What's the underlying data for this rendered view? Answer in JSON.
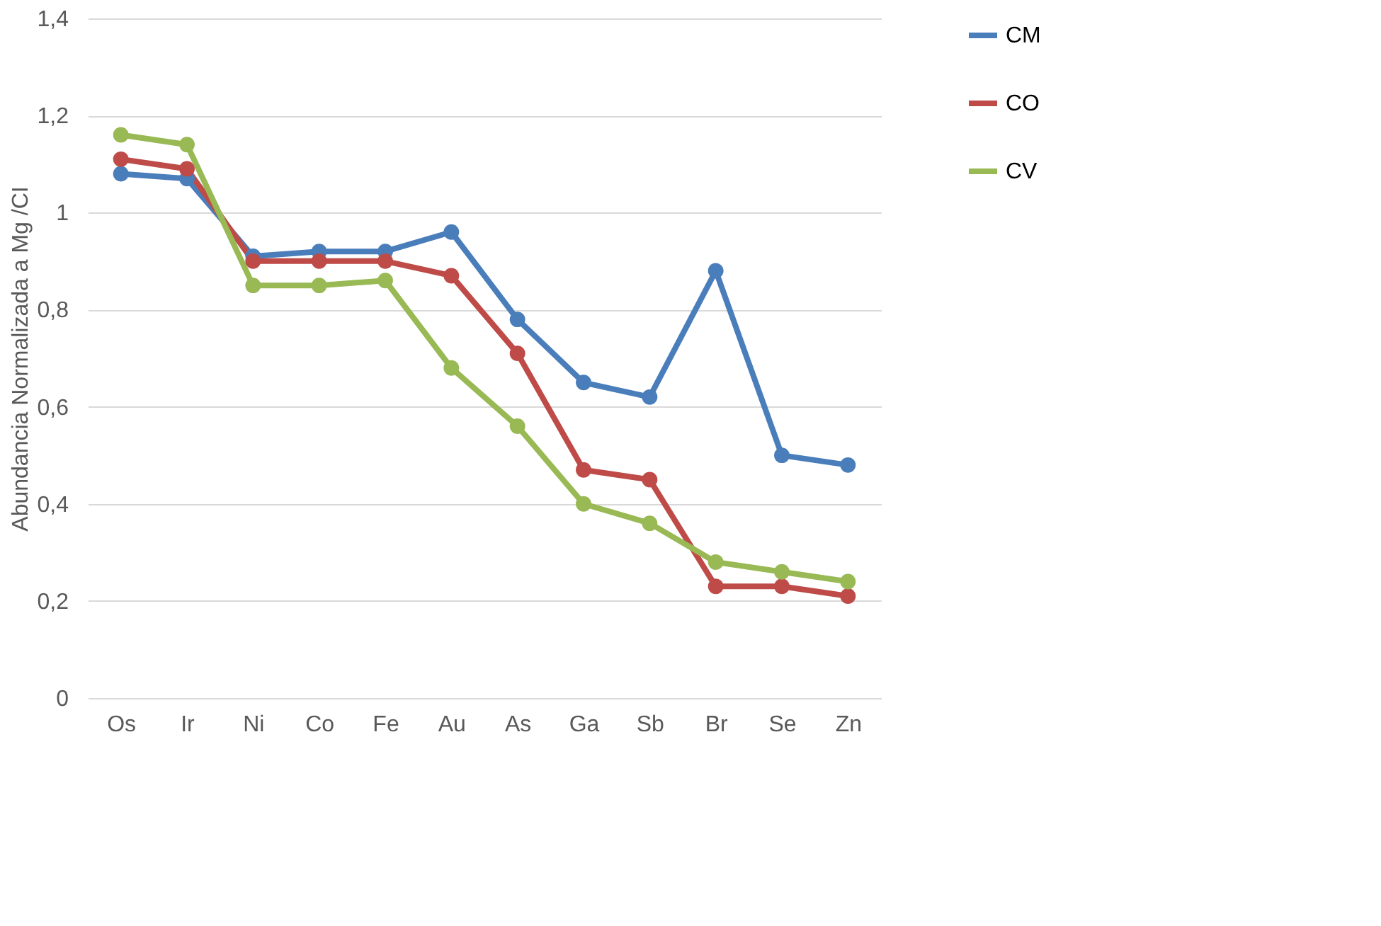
{
  "chart_data": {
    "type": "line",
    "ylabel": "Abundancia Normalizada a  Mg /CI",
    "categories": [
      "Os",
      "Ir",
      "Ni",
      "Co",
      "Fe",
      "Au",
      "As",
      "Ga",
      "Sb",
      "Br",
      "Se",
      "Zn"
    ],
    "series": [
      {
        "name": "CM",
        "color": "#4a7ebb",
        "values": [
          1.08,
          1.07,
          0.91,
          0.92,
          0.92,
          0.96,
          0.78,
          0.65,
          0.62,
          0.88,
          0.5,
          0.48
        ]
      },
      {
        "name": "CO",
        "color": "#be4b48",
        "values": [
          1.11,
          1.09,
          0.9,
          0.9,
          0.9,
          0.87,
          0.71,
          0.47,
          0.45,
          0.23,
          0.23,
          0.21
        ]
      },
      {
        "name": "CV",
        "color": "#98b954",
        "values": [
          1.16,
          1.14,
          0.85,
          0.85,
          0.86,
          0.68,
          0.56,
          0.4,
          0.36,
          0.28,
          0.26,
          0.24
        ]
      }
    ],
    "ylim": [
      0,
      1.4
    ],
    "yticks": [
      0,
      {
        "value": 0.2,
        "label": "0,2"
      },
      {
        "value": 0.4,
        "label": "0,4"
      },
      {
        "value": 0.6,
        "label": "0,6"
      },
      {
        "value": 0.8,
        "label": "0,8"
      },
      1,
      {
        "value": 1.2,
        "label": "1,2"
      },
      {
        "value": 1.4,
        "label": "1,4"
      }
    ],
    "grid": "y",
    "legend": "right",
    "marker": "circle",
    "line_style": "solid"
  }
}
